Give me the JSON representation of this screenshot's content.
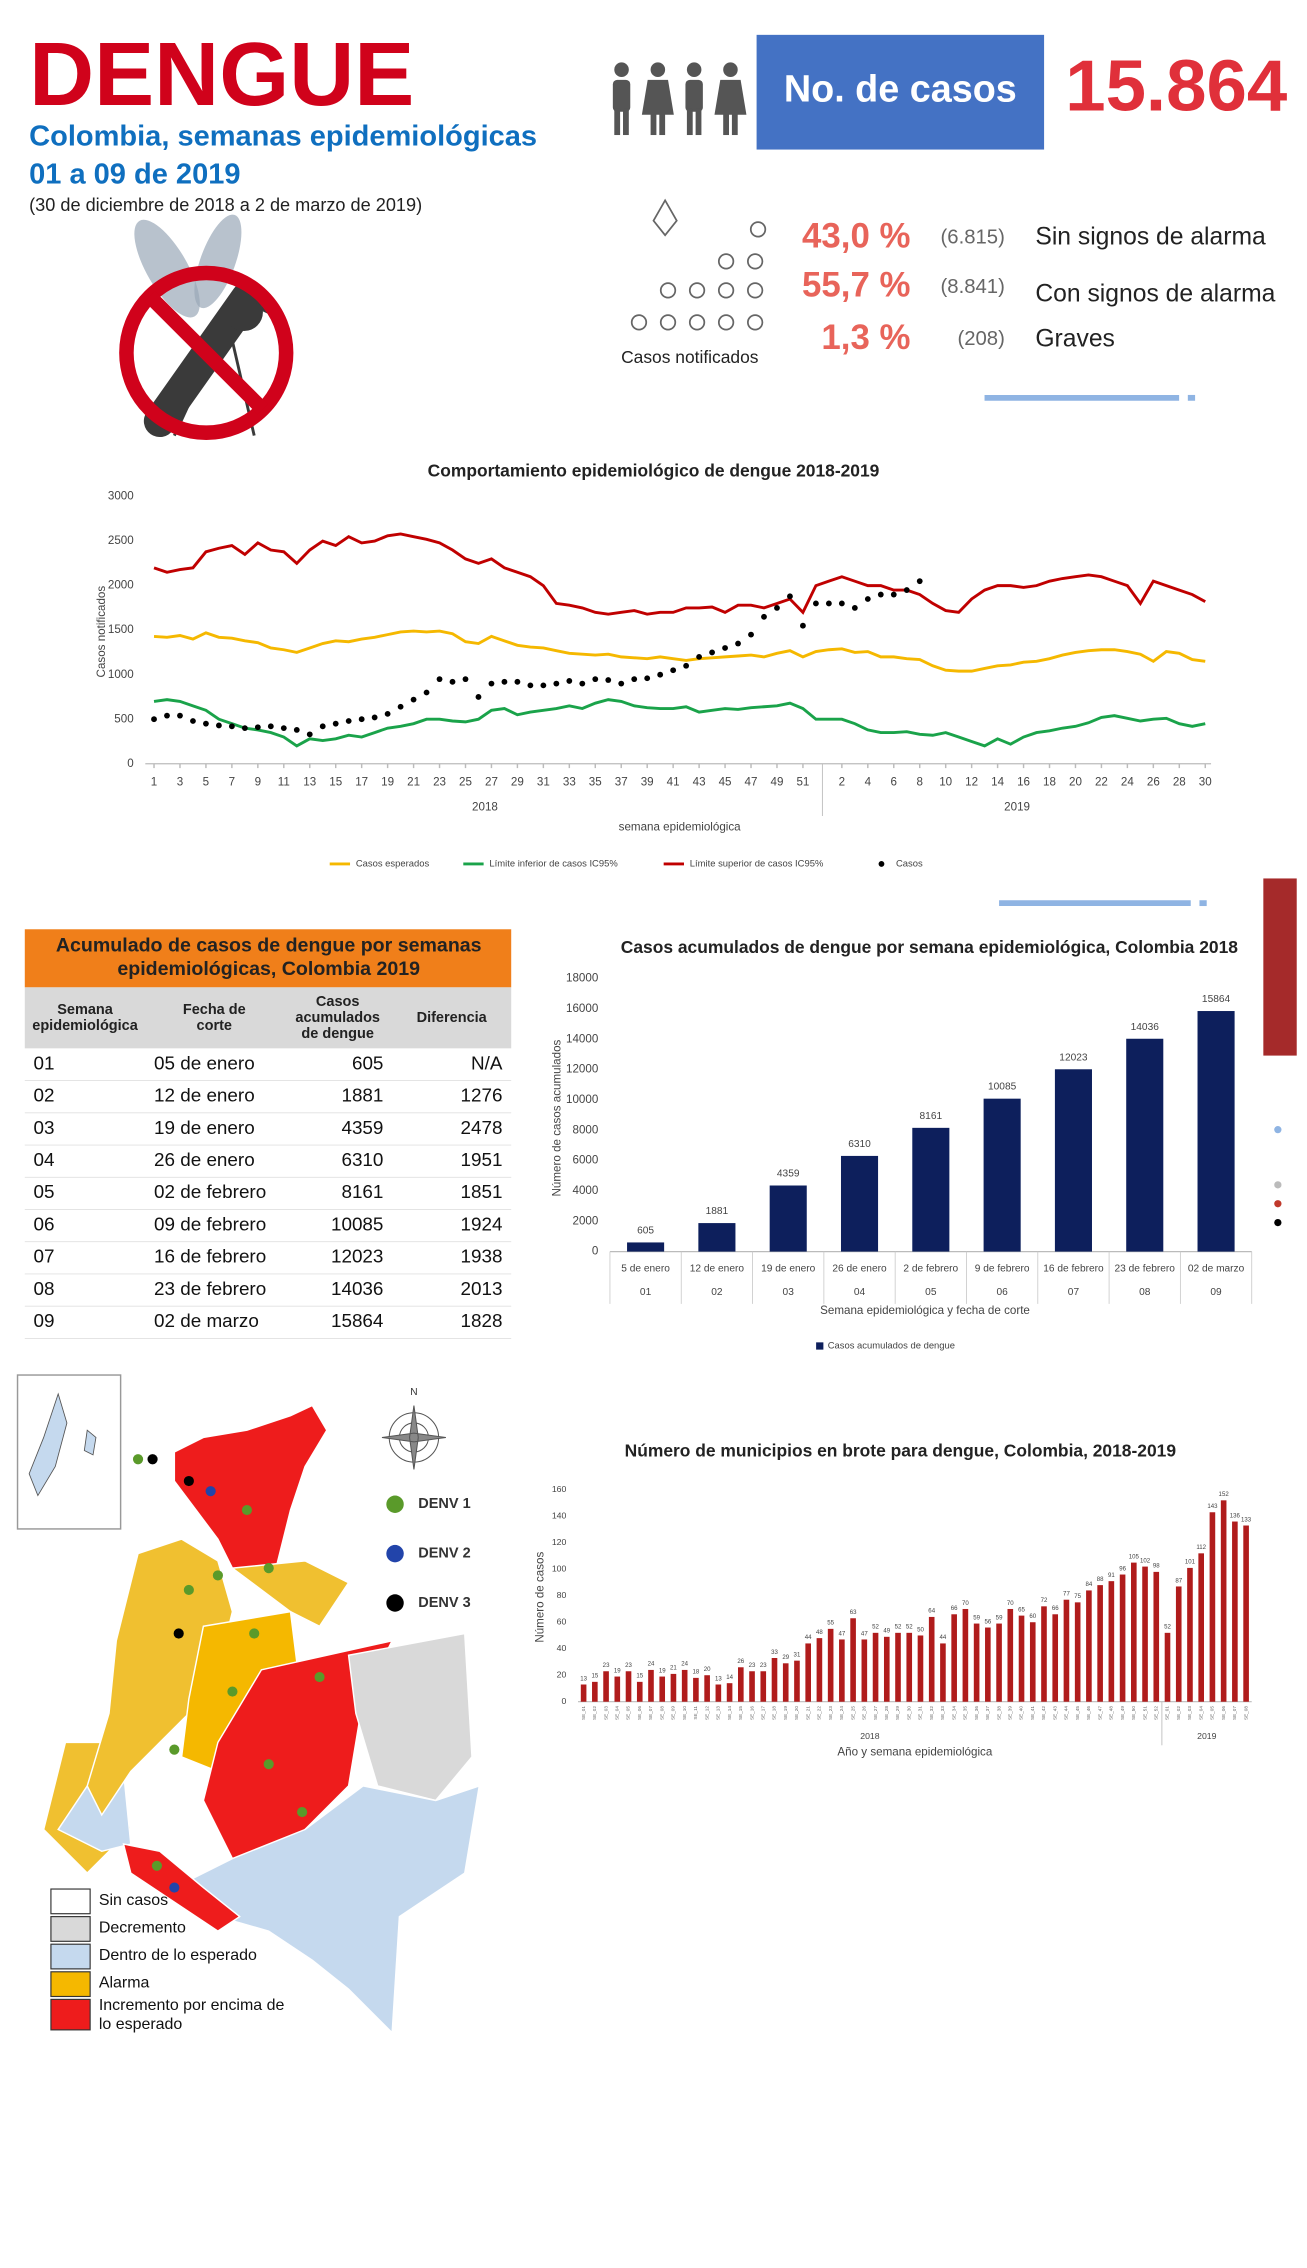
{
  "header": {
    "title": "DENGUE",
    "subtitle": "Colombia, semanas epidemiológicas",
    "weeks": "01 a 09 de 2019",
    "period": "(30 de diciembre de 2018 a 2 de marzo de 2019)",
    "cases_label": "No. de casos",
    "cases_total": "15.864"
  },
  "stats": {
    "caption": "Casos notificados",
    "rows": [
      {
        "percent": "43,0 %",
        "count": "(6.815)",
        "label": "Sin signos de alarma"
      },
      {
        "percent": "55,7 %",
        "count": "(8.841)",
        "label": "Con signos de alarma"
      },
      {
        "percent": "1,3 %",
        "count": "(208)",
        "label": "Graves"
      }
    ]
  },
  "table": {
    "title": "Acumulado de casos de dengue por semanas epidemiológicas, Colombia 2019",
    "columns": [
      "Semana epidemiológica",
      "Fecha de corte",
      "Casos acumulados de dengue",
      "Diferencia"
    ],
    "rows": [
      [
        "01",
        "05 de enero",
        "605",
        "N/A"
      ],
      [
        "02",
        "12 de enero",
        "1881",
        "1276"
      ],
      [
        "03",
        "19 de enero",
        "4359",
        "2478"
      ],
      [
        "04",
        "26 de enero",
        "6310",
        "1951"
      ],
      [
        "05",
        "02 de febrero",
        "8161",
        "1851"
      ],
      [
        "06",
        "09 de febrero",
        "10085",
        "1924"
      ],
      [
        "07",
        "16 de febrero",
        "12023",
        "1938"
      ],
      [
        "08",
        "23 de febrero",
        "14036",
        "2013"
      ],
      [
        "09",
        "02 de marzo",
        "15864",
        "1828"
      ]
    ]
  },
  "map": {
    "legend": [
      {
        "label": "Sin casos",
        "color": "#ffffff"
      },
      {
        "label": "Decremento",
        "color": "#d9d9d9"
      },
      {
        "label": "Dentro de lo esperado",
        "color": "#c5d9ee"
      },
      {
        "label": "Alarma",
        "color": "#f5b800"
      },
      {
        "label": "Incremento por encima de lo esperado",
        "color": "#ee1c1c"
      }
    ],
    "serotypes": [
      {
        "label": "DENV 1",
        "color": "#5a9a2a"
      },
      {
        "label": "DENV 2",
        "color": "#2244aa"
      },
      {
        "label": "DENV 3",
        "color": "#000000"
      }
    ],
    "compass": "N"
  },
  "chart_data": [
    {
      "type": "line",
      "title": "Comportamiento epidemiológico de dengue 2018-2019",
      "ylabel": "Casos notificados",
      "xlabel": "semana epidemiológica",
      "ylim": [
        0,
        3000
      ],
      "yticks": [
        0,
        500,
        1000,
        1500,
        2000,
        2500,
        3000
      ],
      "grid": false,
      "legend": "bottom",
      "groups": [
        "2018",
        "2019"
      ],
      "categories": [
        "1",
        null,
        "3",
        null,
        "5",
        null,
        "7",
        null,
        "9",
        null,
        "11",
        null,
        "13",
        null,
        "15",
        null,
        "17",
        null,
        "19",
        null,
        "21",
        null,
        "23",
        null,
        "25",
        null,
        "27",
        null,
        "29",
        null,
        "31",
        null,
        "33",
        null,
        "35",
        null,
        "37",
        null,
        "39",
        null,
        "41",
        null,
        "43",
        null,
        "45",
        null,
        "47",
        null,
        "49",
        null,
        "51",
        null,
        null,
        "2",
        null,
        "4",
        null,
        "6",
        null,
        "8",
        null,
        "10",
        null,
        "12",
        null,
        "14",
        null,
        "16",
        null,
        "18",
        null,
        "20",
        null,
        "22",
        null,
        "24",
        null,
        "26",
        null,
        "28",
        null,
        "30"
      ],
      "series": [
        {
          "name": "Casos esperados",
          "color": "#f5b800",
          "values": [
            1430,
            1420,
            1440,
            1400,
            1470,
            1420,
            1410,
            1380,
            1360,
            1300,
            1280,
            1250,
            1300,
            1350,
            1380,
            1370,
            1400,
            1420,
            1450,
            1480,
            1490,
            1480,
            1490,
            1460,
            1370,
            1350,
            1430,
            1380,
            1330,
            1310,
            1300,
            1270,
            1240,
            1230,
            1220,
            1230,
            1200,
            1190,
            1180,
            1200,
            1180,
            1160,
            1180,
            1190,
            1200,
            1210,
            1220,
            1200,
            1240,
            1270,
            1200,
            1260,
            1280,
            1290,
            1250,
            1260,
            1200,
            1200,
            1180,
            1170,
            1100,
            1050,
            1040,
            1040,
            1070,
            1100,
            1110,
            1140,
            1150,
            1180,
            1220,
            1250,
            1270,
            1280,
            1280,
            1260,
            1230,
            1150,
            1260,
            1240,
            1170,
            1150
          ]
        },
        {
          "name": "Límite inferior de casos IC95%",
          "color": "#1aa34a",
          "values": [
            700,
            720,
            700,
            650,
            600,
            500,
            450,
            400,
            380,
            350,
            300,
            200,
            280,
            260,
            280,
            320,
            300,
            350,
            400,
            420,
            450,
            500,
            500,
            480,
            470,
            500,
            600,
            620,
            550,
            580,
            600,
            620,
            650,
            620,
            680,
            720,
            700,
            650,
            630,
            620,
            620,
            640,
            580,
            600,
            620,
            610,
            630,
            640,
            650,
            680,
            620,
            500,
            500,
            500,
            450,
            380,
            350,
            350,
            360,
            330,
            320,
            350,
            300,
            250,
            200,
            280,
            220,
            300,
            350,
            370,
            400,
            420,
            460,
            520,
            540,
            510,
            480,
            500,
            510,
            450,
            420,
            450
          ]
        },
        {
          "name": "Límite superior de casos IC95%",
          "color": "#c00000",
          "values": [
            2200,
            2150,
            2180,
            2200,
            2380,
            2420,
            2450,
            2350,
            2480,
            2400,
            2380,
            2250,
            2400,
            2500,
            2450,
            2550,
            2480,
            2500,
            2560,
            2580,
            2550,
            2520,
            2480,
            2400,
            2300,
            2250,
            2300,
            2200,
            2150,
            2100,
            2000,
            1800,
            1780,
            1750,
            1700,
            1680,
            1700,
            1720,
            1680,
            1700,
            1700,
            1750,
            1750,
            1760,
            1700,
            1780,
            1780,
            1750,
            1800,
            1850,
            1700,
            2000,
            2050,
            2100,
            2050,
            2000,
            2000,
            1950,
            1950,
            1900,
            1800,
            1720,
            1700,
            1850,
            1950,
            2000,
            2000,
            1980,
            2000,
            2050,
            2080,
            2100,
            2120,
            2100,
            2050,
            2000,
            1800,
            2050,
            2000,
            1950,
            1900,
            1820
          ]
        },
        {
          "name": "Casos",
          "color": "#000000",
          "marker": "dot",
          "values": [
            500,
            540,
            540,
            480,
            450,
            430,
            420,
            400,
            410,
            420,
            400,
            380,
            330,
            420,
            450,
            480,
            500,
            520,
            560,
            640,
            720,
            800,
            950,
            920,
            950,
            750,
            900,
            920,
            920,
            880,
            880,
            900,
            930,
            900,
            950,
            940,
            900,
            950,
            960,
            1000,
            1050,
            1100,
            1200,
            1250,
            1300,
            1350,
            1450,
            1650,
            1750,
            1880,
            1550,
            1800,
            1800,
            1800,
            1750,
            1850,
            1900,
            1900,
            1950,
            2050,
            null,
            null,
            null,
            null,
            null,
            null,
            null,
            null,
            null,
            null,
            null,
            null,
            null,
            null,
            null,
            null,
            null,
            null,
            null,
            null,
            null,
            null
          ]
        }
      ]
    },
    {
      "type": "bar",
      "title": "Casos acumulados de dengue por semana epidemiológica, Colombia 2018",
      "ylabel": "Número de casos acumulados",
      "xlabel": "Semana epidemiológica y fecha de corte",
      "ylim": [
        0,
        18000
      ],
      "yticks": [
        0,
        2000,
        4000,
        6000,
        8000,
        10000,
        12000,
        14000,
        16000,
        18000
      ],
      "grid": false,
      "legend": "bottom",
      "color": "#0d1f5c",
      "name": "Casos acumulados de dengue",
      "data_labels": true,
      "categories": [
        "5 de enero",
        "12 de enero",
        "19 de enero",
        "26 de enero",
        "2 de febrero",
        "9 de febrero",
        "16 de febrero",
        "23 de febrero",
        "02 de marzo"
      ],
      "category_weeks": [
        "01",
        "02",
        "03",
        "04",
        "05",
        "06",
        "07",
        "08",
        "09"
      ],
      "values": [
        605,
        1881,
        4359,
        6310,
        8161,
        10085,
        12023,
        14036,
        15864
      ]
    },
    {
      "type": "bar",
      "title": "Número de municipios  en brote para dengue, Colombia,  2018-2019",
      "ylabel": "Número de casos",
      "xlabel": "Año y semana epidemiológica",
      "ylim": [
        0,
        160
      ],
      "yticks": [
        0,
        20,
        40,
        60,
        80,
        100,
        120,
        140,
        160
      ],
      "grid": false,
      "color": "#b01c1c",
      "data_labels": true,
      "groups": [
        "2018",
        "2019"
      ],
      "categories": [
        "SE_01",
        "SE_02",
        "SE_03",
        "SE_04",
        "SE_05",
        "SE_06",
        "SE_07",
        "SE_08",
        "SE_09",
        "SE_10",
        "SE_11",
        "SE_12",
        "SE_13",
        "SE_14",
        "SE_15",
        "SE_16",
        "SE_17",
        "SE_18",
        "SE_19",
        "SE_20",
        "SE_21",
        "SE_22",
        "SE_23",
        "SE_24",
        "SE_25",
        "SE_26",
        "SE_27",
        "SE_28",
        "SE_29",
        "SE_30",
        "SE_31",
        "SE_32",
        "SE_33",
        "SE_34",
        "SE_35",
        "SE_36",
        "SE_37",
        "SE_38",
        "SE_39",
        "SE_40",
        "SE_41",
        "SE_42",
        "SE_43",
        "SE_44",
        "SE_45",
        "SE_46",
        "SE_47",
        "SE_48",
        "SE_49",
        "SE_50",
        "SE_51",
        "SE_52",
        "SE_01",
        "SE_02",
        "SE_03",
        "SE_04",
        "SE_05",
        "SE_06",
        "SE_07",
        "SE_08"
      ],
      "values": [
        13,
        15,
        23,
        19,
        23,
        15,
        24,
        19,
        21,
        24,
        18,
        20,
        13,
        14,
        26,
        23,
        23,
        33,
        29,
        31,
        44,
        48,
        55,
        47,
        63,
        47,
        52,
        49,
        52,
        52,
        50,
        64,
        44,
        66,
        70,
        59,
        56,
        59,
        70,
        65,
        60,
        72,
        66,
        77,
        75,
        84,
        88,
        91,
        96,
        105,
        102,
        98,
        52,
        87,
        101,
        112,
        143,
        152,
        136,
        133
      ]
    }
  ]
}
